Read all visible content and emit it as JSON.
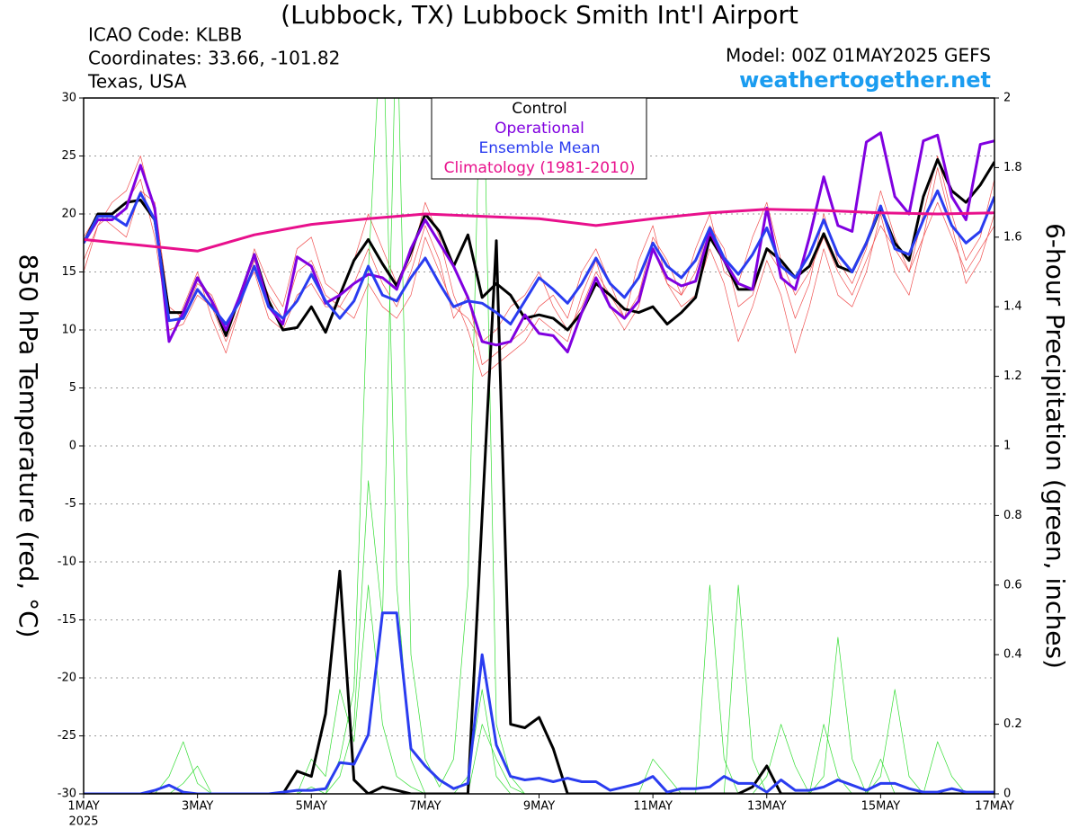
{
  "chart_data": {
    "type": "line",
    "title": "(Lubbock, TX) Lubbock Smith Int'l Airport",
    "info_lines": [
      "ICAO Code: KLBB",
      "Coordinates: 33.66, -101.82",
      "Texas, USA"
    ],
    "model": "Model: 00Z 01MAY2025 GEFS",
    "website": "weathertogether.net",
    "ylabel": "850 hPa Temperature (red, °C)",
    "y2label": "6-hour Precipitation (green, inches)",
    "x_year": "2025",
    "grid": true,
    "xlim": [
      0,
      16
    ],
    "xticks": [
      {
        "value": 0,
        "label": "1MAY"
      },
      {
        "value": 2,
        "label": "3MAY"
      },
      {
        "value": 4,
        "label": "5MAY"
      },
      {
        "value": 6,
        "label": "7MAY"
      },
      {
        "value": 8,
        "label": "9MAY"
      },
      {
        "value": 10,
        "label": "11MAY"
      },
      {
        "value": 12,
        "label": "13MAY"
      },
      {
        "value": 14,
        "label": "15MAY"
      },
      {
        "value": 16,
        "label": "17MAY"
      }
    ],
    "ylim": [
      -30,
      30
    ],
    "yticks": [
      -30,
      -25,
      -20,
      -15,
      -10,
      -5,
      0,
      5,
      10,
      15,
      20,
      25,
      30
    ],
    "y2lim": [
      0,
      2
    ],
    "y2ticks": [
      0,
      0.2,
      0.4,
      0.6,
      0.8,
      1,
      1.2,
      1.4,
      1.6,
      1.8,
      2
    ],
    "x": [
      0,
      0.25,
      0.5,
      0.75,
      1,
      1.25,
      1.5,
      1.75,
      2,
      2.25,
      2.5,
      2.75,
      3,
      3.25,
      3.5,
      3.75,
      4,
      4.25,
      4.5,
      4.75,
      5,
      5.25,
      5.5,
      5.75,
      6,
      6.25,
      6.5,
      6.75,
      7,
      7.25,
      7.5,
      7.75,
      8,
      8.25,
      8.5,
      8.75,
      9,
      9.25,
      9.5,
      9.75,
      10,
      10.25,
      10.5,
      10.75,
      11,
      11.25,
      11.5,
      11.75,
      12,
      12.25,
      12.5,
      12.75,
      13,
      13.25,
      13.5,
      13.75,
      14,
      14.25,
      14.5,
      14.75,
      15,
      15.25,
      15.5,
      15.75,
      16
    ],
    "series": [
      {
        "color": "#f05050",
        "values": [
          15,
          19,
          20,
          21,
          23,
          18,
          10,
          10.5,
          13,
          12,
          9,
          12,
          16,
          13,
          11,
          15,
          16,
          13,
          12,
          14,
          17,
          14,
          12,
          15,
          19,
          16,
          11,
          13,
          7,
          8,
          9,
          10,
          12,
          13,
          11,
          15,
          17,
          14,
          11,
          13,
          18,
          16,
          13,
          15,
          19,
          17,
          12,
          13,
          17,
          15,
          11,
          14,
          20,
          16,
          14,
          17,
          22,
          18,
          15,
          20,
          25,
          20,
          16,
          18,
          23
        ]
      },
      {
        "color": "#f05050",
        "values": [
          18,
          20,
          19,
          18,
          22,
          21,
          12,
          11,
          14,
          13,
          10,
          13,
          15,
          11,
          10,
          13,
          14,
          12,
          12,
          11,
          14,
          12,
          11,
          13,
          18,
          15,
          12,
          11,
          9,
          10,
          12,
          13,
          15,
          12,
          10,
          12,
          15,
          13,
          11,
          16,
          19,
          14,
          13,
          17,
          20,
          15,
          14,
          18,
          21,
          16,
          13,
          15,
          18,
          15,
          13,
          16,
          19,
          17,
          15,
          18,
          21,
          18,
          15,
          17,
          19
        ]
      },
      {
        "color": "#f05050",
        "values": [
          16,
          19,
          21,
          22,
          25,
          20,
          9,
          12,
          15,
          11,
          8,
          12,
          17,
          14,
          12,
          17,
          18,
          14,
          13,
          16,
          20,
          17,
          14,
          16,
          21,
          18,
          13,
          10,
          6,
          7,
          8,
          9,
          11,
          10,
          9,
          13,
          16,
          12,
          10,
          12,
          17,
          14,
          12,
          13,
          17,
          14,
          9,
          12,
          16,
          13,
          8,
          12,
          17,
          13,
          12,
          15,
          20,
          15,
          13,
          18,
          24,
          19,
          14,
          16,
          20
        ]
      },
      {
        "color": "#33dd33",
        "axis": "y2",
        "values": [
          0,
          0,
          0,
          0,
          0,
          0,
          0,
          0.03,
          0.08,
          0,
          0,
          0,
          0,
          0,
          0,
          0,
          0.02,
          0,
          0.1,
          0.3,
          1.5,
          2.3,
          0.6,
          0.1,
          0,
          0,
          0,
          0.05,
          0.3,
          0.05,
          0,
          0,
          0,
          0,
          0,
          0,
          0,
          0,
          0,
          0,
          0,
          0,
          0,
          0,
          0.6,
          0.1,
          0,
          0,
          0,
          0,
          0,
          0,
          0.2,
          0.05,
          0,
          0,
          0.1,
          0,
          0,
          0,
          0,
          0,
          0,
          0,
          0
        ]
      },
      {
        "color": "#33dd33",
        "axis": "y2",
        "values": [
          0,
          0,
          0,
          0,
          0,
          0,
          0,
          0,
          0,
          0,
          0,
          0,
          0,
          0,
          0,
          0,
          0,
          0,
          0.05,
          0.2,
          0.9,
          0.5,
          2.3,
          0.4,
          0.1,
          0.02,
          0.1,
          0.6,
          2.3,
          0.2,
          0.05,
          0,
          0,
          0,
          0,
          0,
          0,
          0,
          0,
          0,
          0.1,
          0.05,
          0,
          0,
          0,
          0,
          0,
          0,
          0.05,
          0.2,
          0.08,
          0,
          0.05,
          0.45,
          0.1,
          0,
          0,
          0,
          0,
          0,
          0.15,
          0.05,
          0,
          0,
          0
        ]
      },
      {
        "color": "#33dd33",
        "axis": "y2",
        "values": [
          0,
          0,
          0,
          0,
          0,
          0,
          0.05,
          0.15,
          0.03,
          0,
          0,
          0,
          0,
          0,
          0,
          0,
          0.1,
          0.05,
          0.3,
          0.15,
          0.6,
          0.2,
          0.05,
          0.02,
          0,
          0,
          0,
          0,
          0.2,
          0.1,
          0.02,
          0,
          0,
          0,
          0,
          0,
          0,
          0,
          0,
          0,
          0,
          0,
          0,
          0,
          0,
          0,
          0.6,
          0.1,
          0,
          0,
          0,
          0,
          0,
          0,
          0,
          0,
          0.05,
          0.3,
          0.05,
          0,
          0,
          0,
          0,
          0,
          0
        ]
      },
      {
        "color": "#000000",
        "axis": "y2",
        "values": [
          0,
          0,
          0,
          0,
          0,
          0,
          0,
          0,
          0,
          0,
          0,
          0,
          0,
          0,
          0,
          0.065,
          0.05,
          0.23,
          0.64,
          0.04,
          0,
          0.02,
          0.01,
          0,
          0,
          0,
          0,
          0,
          0.8,
          1.59,
          0.2,
          0.19,
          0.22,
          0.13,
          0,
          0,
          0,
          0,
          0,
          0,
          0,
          0,
          0,
          0,
          0,
          0,
          0,
          0.02,
          0.08,
          0,
          0,
          0,
          0,
          0,
          0,
          0,
          0,
          0,
          0,
          0,
          0,
          0,
          0,
          0,
          0
        ]
      },
      {
        "color": "#2a3cf0",
        "axis": "y2",
        "values": [
          0,
          0,
          0,
          0,
          0,
          0.01,
          0.025,
          0.005,
          0,
          0,
          0,
          0,
          0,
          0,
          0.005,
          0.01,
          0.01,
          0.015,
          0.09,
          0.085,
          0.17,
          0.52,
          0.52,
          0.13,
          0.08,
          0.04,
          0.015,
          0.03,
          0.4,
          0.14,
          0.05,
          0.04,
          0.045,
          0.035,
          0.045,
          0.035,
          0.035,
          0.01,
          0.02,
          0.03,
          0.05,
          0.005,
          0.015,
          0.015,
          0.02,
          0.05,
          0.03,
          0.03,
          0.005,
          0.04,
          0.01,
          0.01,
          0.02,
          0.04,
          0.025,
          0.01,
          0.03,
          0.03,
          0.015,
          0.005,
          0.005,
          0.015,
          0.005,
          0.005,
          0.005
        ]
      },
      {
        "name": "Control",
        "color": "#000000",
        "values": [
          17.5,
          20,
          20,
          21,
          21.2,
          19.5,
          11.5,
          11.5,
          14.5,
          12.5,
          9.5,
          13,
          16.5,
          12.5,
          10,
          10.2,
          12,
          9.8,
          13,
          16,
          17.8,
          15.7,
          13.8,
          16.7,
          20,
          18.5,
          15.5,
          18.2,
          12.8,
          14,
          13,
          11,
          11.3,
          11,
          10,
          11.5,
          14,
          13,
          11.8,
          11.5,
          12,
          10.5,
          11.5,
          12.8,
          18,
          16,
          13.5,
          13.5,
          17,
          16,
          14.5,
          15.5,
          18.3,
          15.5,
          15,
          17.5,
          20.5,
          17.5,
          16,
          21.5,
          24.7,
          22,
          21,
          22.5,
          24.5
        ]
      },
      {
        "name": "Operational",
        "color": "#8000e0",
        "values": [
          17.5,
          19.5,
          19.5,
          20.5,
          24.2,
          20.5,
          9,
          11.5,
          14.5,
          12.5,
          10,
          13,
          16.5,
          12,
          10.5,
          16.3,
          15.5,
          12.3,
          13,
          14,
          14.8,
          14.5,
          13.5,
          17,
          19.5,
          17.5,
          15.5,
          12.8,
          9,
          8.7,
          9,
          11.3,
          9.7,
          9.5,
          8.1,
          11.5,
          14.5,
          12,
          11,
          12.5,
          17,
          14.5,
          13.8,
          14.2,
          18.5,
          16,
          14,
          13.5,
          20.5,
          14.5,
          13.5,
          18,
          23.2,
          19,
          18.5,
          26.2,
          27,
          21.5,
          20,
          26.3,
          26.8,
          21.5,
          19.5,
          26,
          26.3
        ]
      },
      {
        "name": "Ensemble Mean",
        "color": "#2a3cf0",
        "values": [
          17.5,
          19.8,
          19.8,
          19,
          21.8,
          19.5,
          10.8,
          11,
          13.5,
          12,
          10.5,
          12.5,
          15.5,
          12,
          11,
          12.5,
          14.8,
          12.5,
          11,
          12.5,
          15.5,
          13,
          12.5,
          14.5,
          16.2,
          14,
          12,
          12.5,
          12.3,
          11.5,
          10.5,
          12.5,
          14.5,
          13.5,
          12.3,
          14,
          16.2,
          14,
          12.8,
          14.5,
          17.5,
          15.5,
          14.5,
          16,
          18.8,
          16.2,
          14.8,
          16.5,
          18.8,
          15.5,
          14.5,
          16.5,
          19.5,
          16.5,
          15,
          17.5,
          20.7,
          17,
          16.5,
          19.5,
          22,
          19,
          17.5,
          18.5,
          21.5
        ]
      },
      {
        "name": "Climatology (1981-2010)",
        "color": "#e8108c",
        "x": [
          0,
          1,
          2,
          3,
          4,
          5,
          6,
          7,
          8,
          9,
          10,
          11,
          12,
          13,
          14,
          15,
          16
        ],
        "values": [
          17.8,
          17.3,
          16.8,
          18.2,
          19.1,
          19.6,
          20,
          19.8,
          19.6,
          19,
          19.6,
          20.1,
          20.4,
          20.3,
          20.1,
          20,
          20.1
        ]
      }
    ]
  }
}
